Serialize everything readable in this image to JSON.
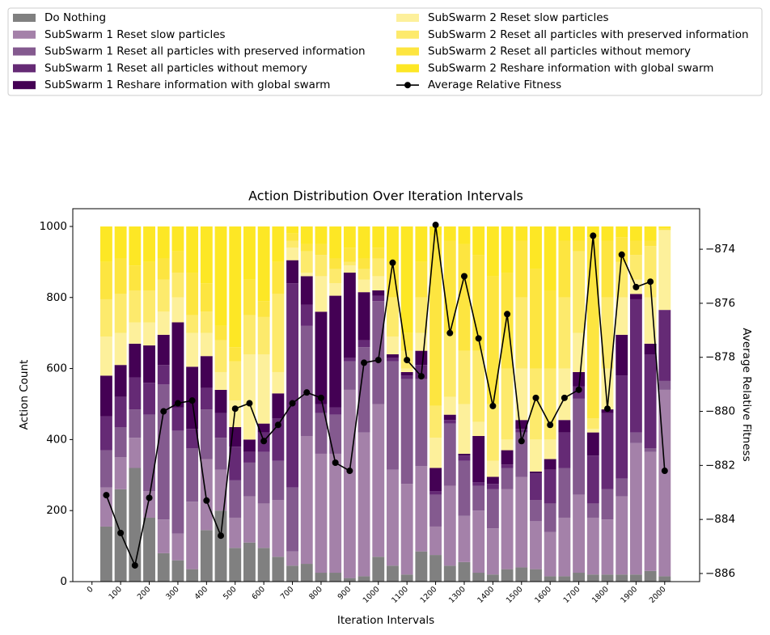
{
  "chart_data": {
    "type": "bar",
    "stacked": true,
    "title": "Action Distribution Over Iteration Intervals",
    "x_label": "Iteration Intervals",
    "y_label": "Action Count",
    "y2_label": "Average Relative Fitness",
    "x": [
      50,
      100,
      150,
      200,
      250,
      300,
      350,
      400,
      450,
      500,
      550,
      600,
      650,
      700,
      750,
      800,
      850,
      900,
      950,
      1000,
      1050,
      1100,
      1150,
      1200,
      1250,
      1300,
      1350,
      1400,
      1450,
      1500,
      1550,
      1600,
      1650,
      1700,
      1750,
      1800,
      1850,
      1900,
      1950,
      2000
    ],
    "xlim": [
      -67,
      2122
    ],
    "xticks": [
      0,
      100,
      200,
      300,
      400,
      500,
      600,
      700,
      800,
      900,
      1000,
      1100,
      1200,
      1300,
      1400,
      1500,
      1600,
      1700,
      1800,
      1900,
      2000
    ],
    "ylim": [
      0,
      1050
    ],
    "yticks": [
      0,
      200,
      400,
      600,
      800,
      1000
    ],
    "y2lim": [
      -886.3,
      -872.5
    ],
    "y2ticks": [
      {
        "value": -886,
        "label": "−886"
      },
      {
        "value": -884,
        "label": "−884"
      },
      {
        "value": -882,
        "label": "−882"
      },
      {
        "value": -880,
        "label": "−880"
      },
      {
        "value": -878,
        "label": "−878"
      },
      {
        "value": -876,
        "label": "−876"
      },
      {
        "value": -874,
        "label": "−874"
      }
    ],
    "grid": false,
    "legend": "top",
    "series": [
      {
        "name": "Do Nothing",
        "color": "#808080",
        "values": [
          155,
          260,
          320,
          180,
          80,
          60,
          35,
          145,
          200,
          95,
          110,
          95,
          70,
          45,
          50,
          25,
          25,
          10,
          15,
          70,
          45,
          20,
          85,
          75,
          45,
          55,
          25,
          20,
          35,
          40,
          35,
          15,
          15,
          25,
          20,
          20,
          20,
          20,
          30,
          15
        ]
      },
      {
        "name": "SubSwarm 1 Reset slow particles",
        "color": "#a481a9",
        "values": [
          110,
          90,
          85,
          75,
          95,
          75,
          190,
          200,
          115,
          85,
          130,
          125,
          160,
          40,
          360,
          335,
          335,
          530,
          405,
          430,
          270,
          255,
          240,
          80,
          225,
          130,
          175,
          130,
          225,
          255,
          135,
          125,
          165,
          220,
          160,
          155,
          220,
          370,
          335,
          525
        ]
      },
      {
        "name": "SubSwarm 1 Reset all particles with preserved information",
        "color": "#845a8f",
        "values": [
          105,
          85,
          80,
          215,
          380,
          290,
          150,
          140,
          90,
          105,
          95,
          145,
          110,
          180,
          310,
          115,
          110,
          80,
          240,
          290,
          305,
          295,
          245,
          90,
          175,
          155,
          70,
          110,
          60,
          125,
          60,
          80,
          140,
          270,
          40,
          85,
          50,
          30,
          10,
          25
        ]
      },
      {
        "name": "SubSwarm 1 Reset all particles without memory",
        "color": "#652a75",
        "values": [
          95,
          85,
          90,
          90,
          55,
          65,
          55,
          60,
          70,
          95,
          30,
          55,
          120,
          575,
          60,
          25,
          20,
          10,
          20,
          15,
          10,
          10,
          40,
          10,
          10,
          15,
          10,
          15,
          10,
          10,
          75,
          95,
          100,
          35,
          135,
          215,
          290,
          375,
          265,
          200
        ]
      },
      {
        "name": "SubSwarm 1 Reshare information with global swarm",
        "color": "#440154",
        "values": [
          115,
          90,
          95,
          105,
          85,
          240,
          175,
          90,
          65,
          55,
          35,
          25,
          70,
          65,
          80,
          260,
          315,
          240,
          135,
          15,
          10,
          10,
          40,
          65,
          15,
          5,
          130,
          20,
          40,
          25,
          5,
          30,
          35,
          40,
          65,
          10,
          115,
          15,
          30,
          0
        ]
      },
      {
        "name": "SubSwarm 2 Reset slow particles",
        "color": "#fdf09b",
        "values": [
          110,
          90,
          60,
          65,
          65,
          70,
          95,
          65,
          50,
          75,
          240,
          195,
          60,
          35,
          10,
          100,
          35,
          20,
          35,
          40,
          50,
          10,
          50,
          85,
          50,
          140,
          40,
          45,
          30,
          145,
          90,
          55,
          145,
          110,
          10,
          115,
          105,
          40,
          130,
          225
        ]
      },
      {
        "name": "SubSwarm 2 Reset all particles with preserved information",
        "color": "#fdea6c",
        "values": [
          105,
          110,
          90,
          90,
          90,
          70,
          50,
          60,
          90,
          110,
          110,
          105,
          220,
          20,
          60,
          60,
          40,
          10,
          30,
          50,
          110,
          50,
          100,
          90,
          180,
          150,
          200,
          160,
          200,
          200,
          200,
          200,
          200,
          230,
          30,
          200,
          100,
          70,
          145,
          0
        ]
      },
      {
        "name": "SubSwarm 2 Reset all particles without memory",
        "color": "#fde540",
        "values": [
          105,
          100,
          70,
          80,
          60,
          60,
          120,
          80,
          40,
          40,
          100,
          45,
          90,
          20,
          20,
          30,
          30,
          40,
          30,
          30,
          100,
          50,
          100,
          480,
          260,
          300,
          270,
          360,
          270,
          160,
          280,
          220,
          160,
          30,
          510,
          160,
          70,
          40,
          15,
          5
        ]
      },
      {
        "name": "SubSwarm 2 Reshare information with global swarm",
        "color": "#fde725",
        "values": [
          100,
          90,
          110,
          100,
          90,
          70,
          130,
          160,
          280,
          340,
          150,
          210,
          100,
          20,
          50,
          50,
          90,
          60,
          90,
          60,
          100,
          300,
          100,
          25,
          40,
          50,
          80,
          140,
          130,
          40,
          120,
          180,
          40,
          40,
          30,
          40,
          30,
          40,
          40,
          5
        ]
      },
      {
        "name": "Average Relative Fitness",
        "color": "#000000",
        "type": "line",
        "axis": "y2",
        "values": [
          -883.1,
          -884.5,
          -885.7,
          -883.2,
          -880.0,
          -879.7,
          -879.6,
          -883.3,
          -884.6,
          -879.9,
          -879.7,
          -881.1,
          -880.5,
          -879.7,
          -879.3,
          -879.5,
          -881.9,
          -882.2,
          -878.2,
          -878.1,
          -874.5,
          -878.1,
          -878.7,
          -873.1,
          -877.1,
          -875.0,
          -877.3,
          -879.8,
          -876.4,
          -881.1,
          -879.5,
          -880.5,
          -879.5,
          -879.2,
          -873.5,
          -879.9,
          -874.2,
          -875.4,
          -875.2,
          -882.2
        ]
      }
    ]
  }
}
